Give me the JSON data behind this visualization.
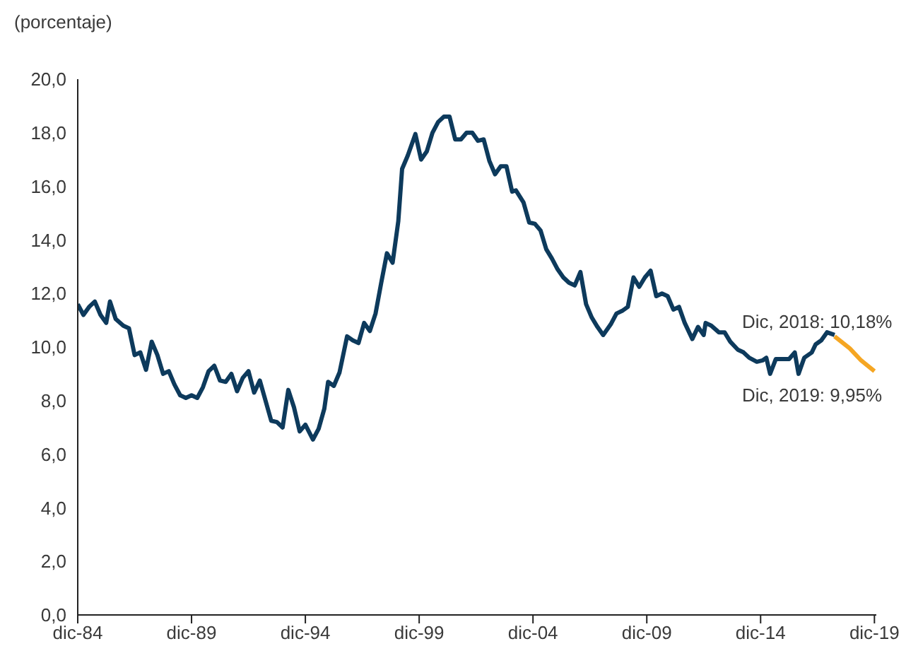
{
  "chart_data": {
    "type": "line",
    "ylabel": "(porcentaje)",
    "xlim": [
      "1984-12",
      "2020-01"
    ],
    "xticks": [
      {
        "value": "1984-12",
        "label": "dic-84"
      },
      {
        "value": "1989-12",
        "label": "dic-89"
      },
      {
        "value": "1994-12",
        "label": "dic-94"
      },
      {
        "value": "1999-12",
        "label": "dic-99"
      },
      {
        "value": "2004-12",
        "label": "dic-04"
      },
      {
        "value": "2009-12",
        "label": "dic-09"
      },
      {
        "value": "2014-12",
        "label": "dic-14"
      },
      {
        "value": "2019-12",
        "label": "dic-19"
      }
    ],
    "ylim": [
      0,
      20
    ],
    "yticks": [
      {
        "value": 0,
        "label": "0,0"
      },
      {
        "value": 2,
        "label": "2,0"
      },
      {
        "value": 4,
        "label": "4,0"
      },
      {
        "value": 6,
        "label": "6,0"
      },
      {
        "value": 8,
        "label": "8,0"
      },
      {
        "value": 10,
        "label": "10,0"
      },
      {
        "value": 12,
        "label": "12,0"
      },
      {
        "value": 14,
        "label": "14,0"
      },
      {
        "value": 16,
        "label": "16,0"
      },
      {
        "value": 18,
        "label": "18,0"
      },
      {
        "value": 20,
        "label": "20,0"
      }
    ],
    "line_style": "solid",
    "marker": "none",
    "annotations": [
      "Dic, 2018: 10,18%",
      "Dic, 2019: 9,95%"
    ],
    "series": [
      {
        "color": "#0d3a5c",
        "x": [
          "1984-12",
          "1985-03",
          "1985-06",
          "1985-09",
          "1985-12",
          "1986-03",
          "1986-05",
          "1986-08",
          "1986-12",
          "1987-03",
          "1987-06",
          "1987-09",
          "1987-12",
          "1988-03",
          "1988-06",
          "1988-09",
          "1988-12",
          "1989-03",
          "1989-06",
          "1989-09",
          "1989-12",
          "1990-03",
          "1990-06",
          "1990-09",
          "1990-12",
          "1991-03",
          "1991-06",
          "1991-09",
          "1991-12",
          "1992-03",
          "1992-06",
          "1992-09",
          "1992-12",
          "1993-06",
          "1993-09",
          "1993-12",
          "1994-03",
          "1994-06",
          "1994-09",
          "1994-12",
          "1995-04",
          "1995-07",
          "1995-10",
          "1995-12",
          "1996-03",
          "1996-06",
          "1996-10",
          "1997-01",
          "1997-04",
          "1997-07",
          "1997-10",
          "1998-01",
          "1998-04",
          "1998-07",
          "1998-10",
          "1999-01",
          "1999-03",
          "1999-06",
          "1999-10",
          "2000-01",
          "2000-04",
          "2000-07",
          "2000-10",
          "2001-01",
          "2001-04",
          "2001-07",
          "2001-10",
          "2002-01",
          "2002-04",
          "2002-07",
          "2002-10",
          "2003-01",
          "2003-04",
          "2003-07",
          "2003-10",
          "2004-01",
          "2004-03",
          "2004-07",
          "2004-10",
          "2005-01",
          "2005-04",
          "2005-07",
          "2005-10",
          "2006-01",
          "2006-04",
          "2006-07",
          "2006-10",
          "2007-01",
          "2007-04",
          "2007-07",
          "2007-10",
          "2008-01",
          "2008-05",
          "2008-08",
          "2008-11",
          "2009-02",
          "2009-05",
          "2009-08",
          "2009-11",
          "2010-02",
          "2010-05",
          "2010-08",
          "2010-11",
          "2011-02",
          "2011-05",
          "2011-08",
          "2011-12",
          "2012-03",
          "2012-06",
          "2012-07",
          "2012-10",
          "2013-02",
          "2013-05",
          "2013-08",
          "2013-12",
          "2014-03",
          "2014-06",
          "2014-10",
          "2015-01",
          "2015-03",
          "2015-05",
          "2015-08",
          "2015-11",
          "2016-03",
          "2016-06",
          "2016-08",
          "2016-11",
          "2017-03",
          "2017-05",
          "2017-08",
          "2017-11",
          "2018-03"
        ],
        "values": [
          11.6,
          11.2,
          11.5,
          11.7,
          11.2,
          10.9,
          11.7,
          11.05,
          10.8,
          10.7,
          9.7,
          9.8,
          9.15,
          10.2,
          9.7,
          9.0,
          9.1,
          8.6,
          8.2,
          8.1,
          8.2,
          8.1,
          8.5,
          9.1,
          9.3,
          8.75,
          8.7,
          9.0,
          8.35,
          8.85,
          9.1,
          8.3,
          8.75,
          7.25,
          7.2,
          7.0,
          8.4,
          7.75,
          6.85,
          7.1,
          6.55,
          6.95,
          7.7,
          8.7,
          8.55,
          9.05,
          10.4,
          10.25,
          10.15,
          10.9,
          10.6,
          11.25,
          12.4,
          13.5,
          13.15,
          14.7,
          16.65,
          17.15,
          17.95,
          17.0,
          17.3,
          18.0,
          18.4,
          18.6,
          18.6,
          17.75,
          17.75,
          18.0,
          18.0,
          17.7,
          17.75,
          16.95,
          16.45,
          16.75,
          16.75,
          15.8,
          15.85,
          15.4,
          14.65,
          14.6,
          14.35,
          13.65,
          13.3,
          12.9,
          12.6,
          12.4,
          12.3,
          12.8,
          11.6,
          11.1,
          10.75,
          10.45,
          10.85,
          11.25,
          11.35,
          11.5,
          12.6,
          12.25,
          12.6,
          12.85,
          11.9,
          12.0,
          11.9,
          11.4,
          11.5,
          10.9,
          10.3,
          10.75,
          10.45,
          10.9,
          10.8,
          10.55,
          10.55,
          10.2,
          9.9,
          9.8,
          9.6,
          9.45,
          9.5,
          9.6,
          9.0,
          9.55,
          9.55,
          9.55,
          9.8,
          9.0,
          9.6,
          9.8,
          10.1,
          10.25,
          10.55,
          10.45
        ]
      },
      {
        "color": "#f5a623",
        "x": [
          "2018-03",
          "2018-11",
          "2019-05",
          "2019-12"
        ],
        "values": [
          10.4,
          9.95,
          9.5,
          9.1
        ]
      }
    ]
  }
}
